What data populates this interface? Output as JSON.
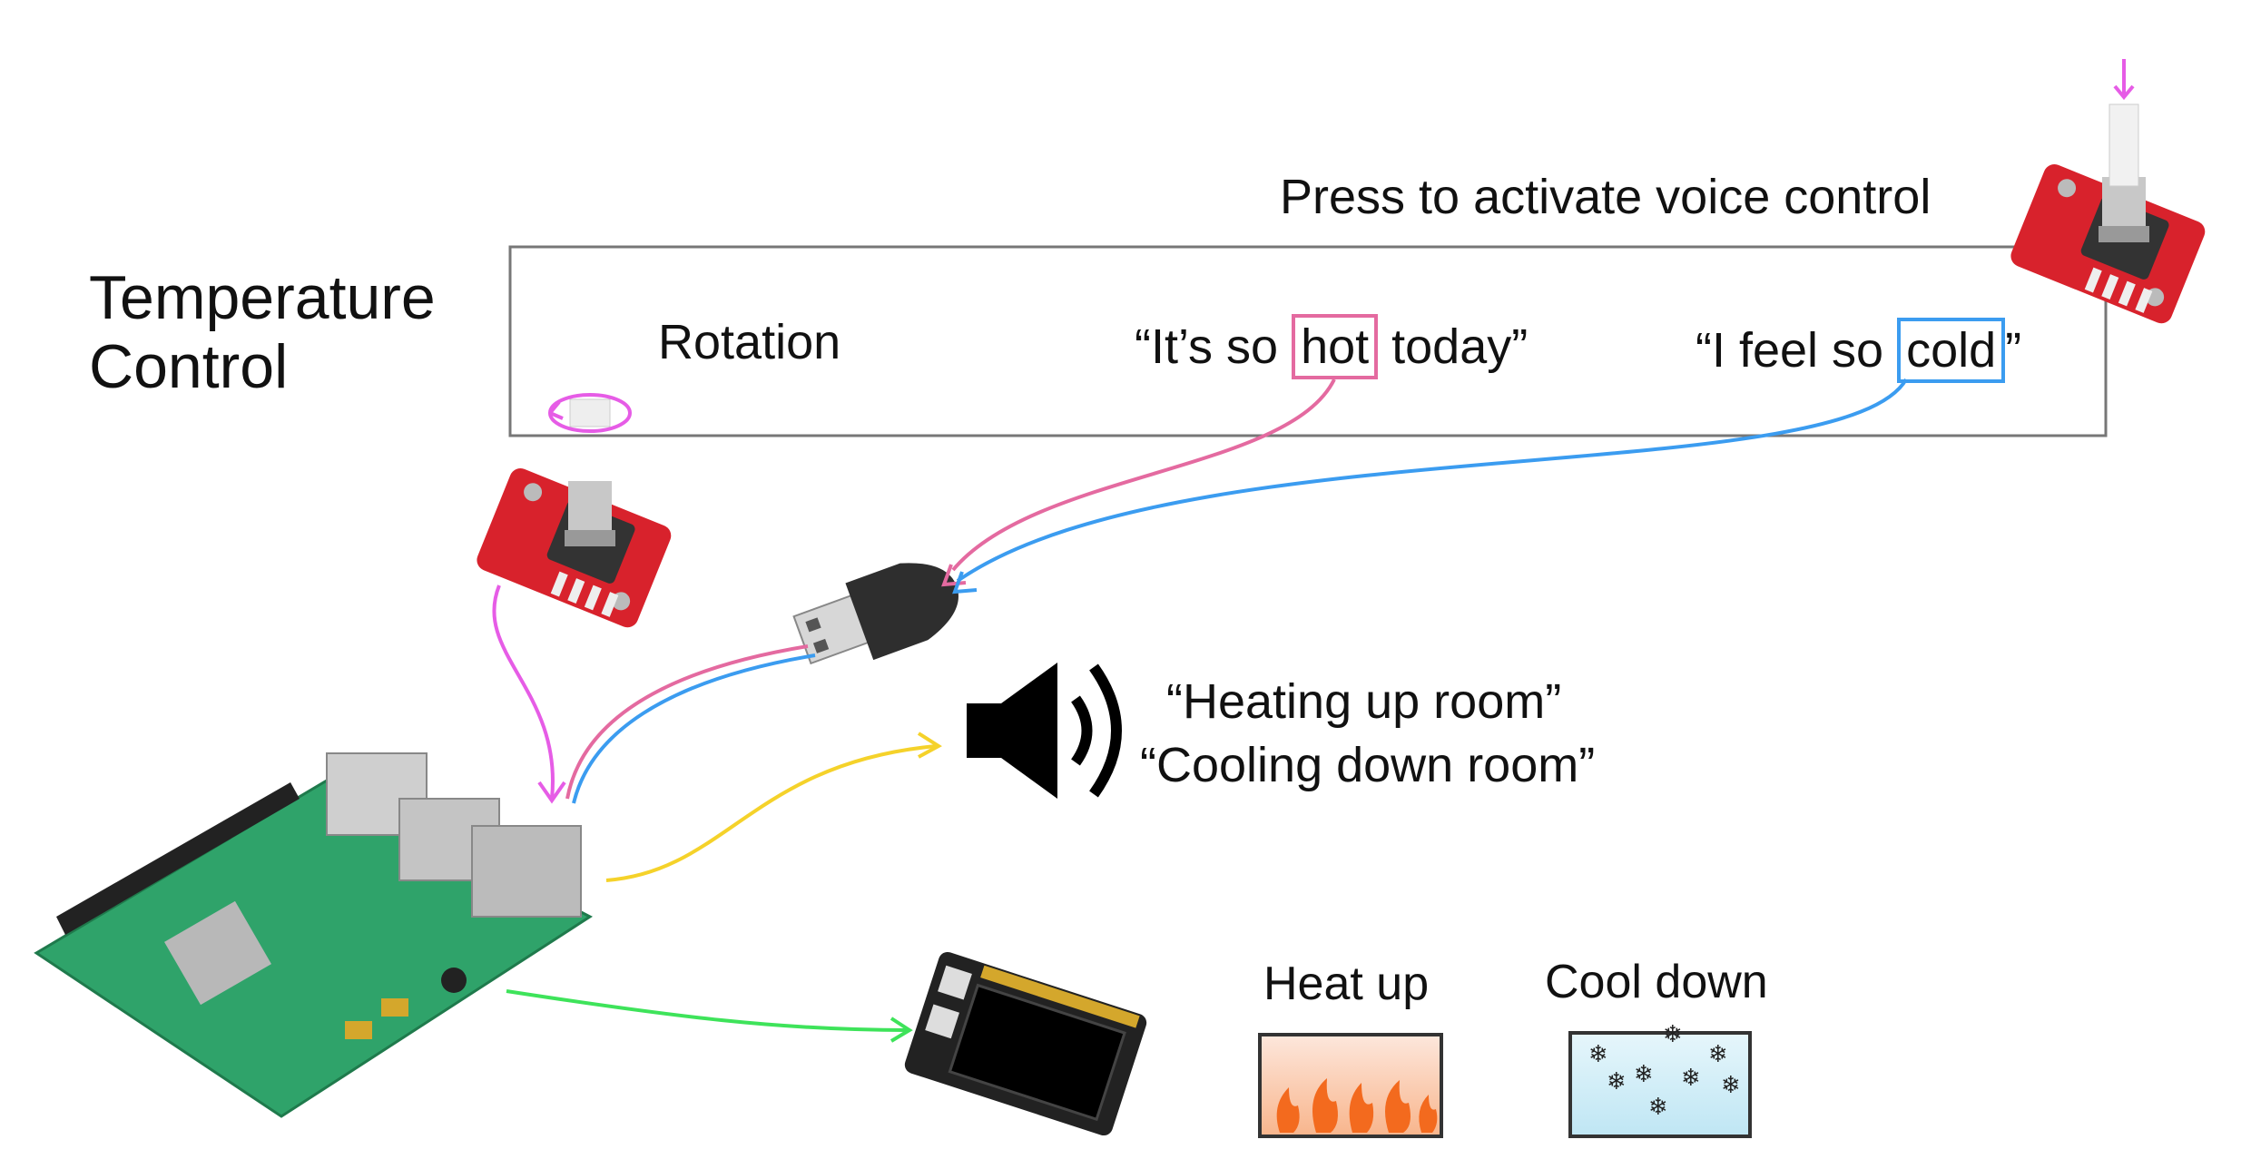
{
  "title": "Temperature Control",
  "press_label": "Press to activate voice control",
  "rotation_label": "Rotation",
  "phrase_hot": {
    "before": "“It’s so ",
    "keyword": "hot",
    "after": " today”"
  },
  "phrase_cold": {
    "before": "“I feel so ",
    "keyword": "cold",
    "after": "”"
  },
  "speaker_messages": {
    "heating": "“Heating up room”",
    "cooling": "“Cooling down room”"
  },
  "display_labels": {
    "heat": "Heat up",
    "cool": "Cool down"
  },
  "colors": {
    "box_border": "#777777",
    "hot_keyword": "#e46aa0",
    "cold_keyword": "#3b9cf0",
    "rotation_wire": "#e65ce6",
    "audio_out_wire": "#f5d22a",
    "display_wire": "#3ee35a",
    "board_red": "#d8222c",
    "pi_green": "#2fa36a"
  },
  "icons": [
    "rotary-encoder-icon",
    "usb-microphone-icon",
    "speaker-icon",
    "raspberry-pi-icon",
    "tft-display-icon",
    "fire-icon",
    "snowflake-icon"
  ]
}
